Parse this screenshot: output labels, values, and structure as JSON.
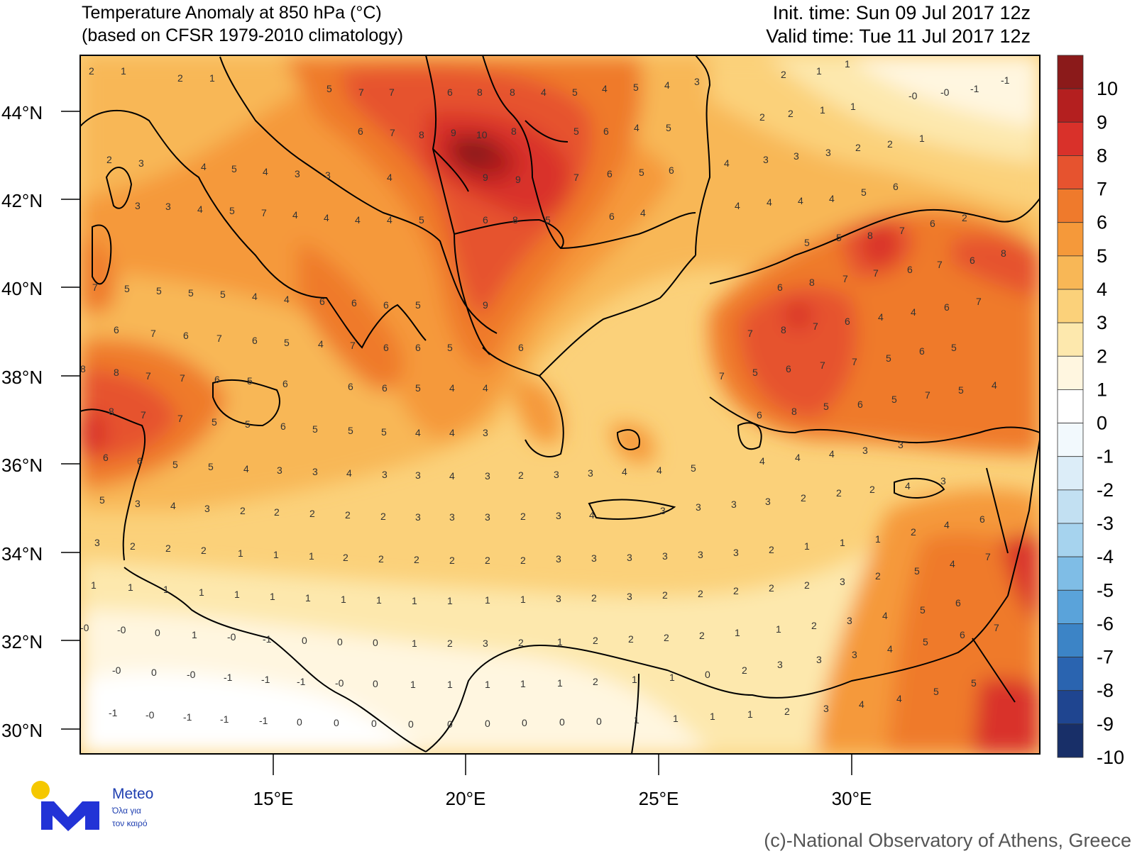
{
  "title": {
    "line1": "Temperature Anomaly at 850 hPa (°C)",
    "line2": "(based on CFSR 1979-2010 climatology)"
  },
  "times": {
    "init": "Init. time: Sun 09 Jul 2017 12z",
    "valid": "Valid time: Tue 11 Jul 2017 12z"
  },
  "lat_labels": [
    "44°N",
    "42°N",
    "40°N",
    "38°N",
    "36°N",
    "34°N",
    "32°N",
    "30°N"
  ],
  "lon_labels": [
    "15°E",
    "20°E",
    "25°E",
    "30°E"
  ],
  "colorbar": {
    "labels": [
      "10",
      "9",
      "8",
      "7",
      "6",
      "5",
      "4",
      "3",
      "2",
      "1",
      "0",
      "-1",
      "-2",
      "-3",
      "-4",
      "-5",
      "-6",
      "-7",
      "-8",
      "-9",
      "-10"
    ],
    "colors": [
      "#8b1a1a",
      "#b41f1f",
      "#d9312a",
      "#e6532f",
      "#ef7a2c",
      "#f5993a",
      "#f8b756",
      "#fbd17a",
      "#fde8ad",
      "#fff6e0",
      "#ffffff",
      "#f2f9fd",
      "#dcedf8",
      "#c2e0f2",
      "#a6d3ee",
      "#7fbde6",
      "#5aa3da",
      "#3c84c6",
      "#2a64b0",
      "#1f4590",
      "#182f68"
    ]
  },
  "logo": {
    "brand": "Meteo",
    "tagline_line1": "Όλα για",
    "tagline_line2": "τον καιρό"
  },
  "credit": "(c)-National Observatory of Athens, Greece"
}
